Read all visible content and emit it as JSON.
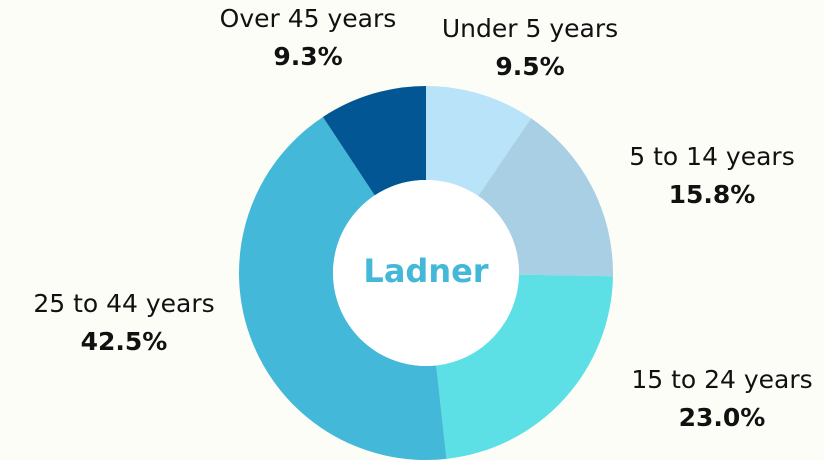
{
  "chart_data": {
    "type": "donut",
    "center_text": "Ladner",
    "categories": [
      "Under 5 years",
      "5 to 14 years",
      "15 to 24 years",
      "25 to 44 years",
      "Over 45 years"
    ],
    "values": [
      9.5,
      15.8,
      23.0,
      42.5,
      9.3
    ],
    "value_labels": [
      "9.5%",
      "15.8%",
      "23.0%",
      "42.5%",
      "9.3%"
    ],
    "colors": [
      "#b8e3f8",
      "#a9cfe4",
      "#5ce0e6",
      "#43b8d8",
      "#035694"
    ]
  }
}
